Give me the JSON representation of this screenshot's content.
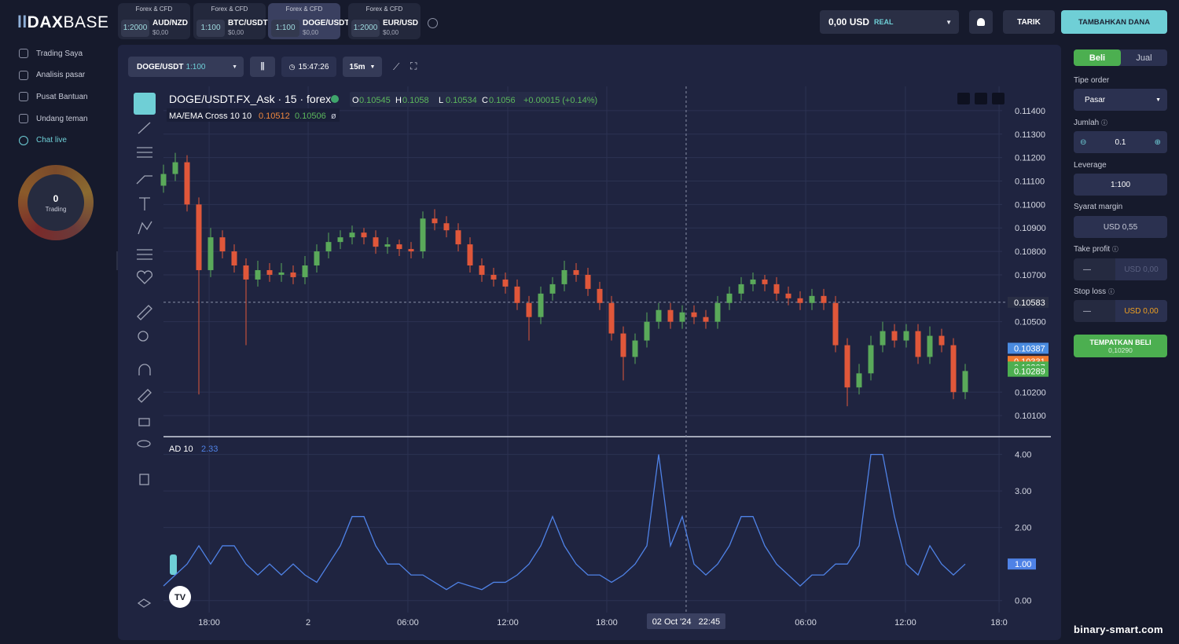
{
  "header": {
    "logo_bold": "DAX",
    "logo_light": "BASE",
    "tabs": [
      {
        "group": "Forex & CFD",
        "leverage": "1:2000",
        "symbol": "AUD/NZD",
        "amount": "$0,00"
      },
      {
        "group": "Forex & CFD",
        "leverage": "1:100",
        "symbol": "BTC/USDT",
        "amount": "$0,00"
      },
      {
        "group": "Forex & CFD",
        "leverage": "1:100",
        "symbol": "DOGE/USDT",
        "amount": "$0,00"
      },
      {
        "group": "Forex & CFD",
        "leverage": "1:2000",
        "symbol": "EUR/USD",
        "amount": "$0,00"
      }
    ],
    "balance": "0,00 USD",
    "account_mode": "REAL",
    "withdraw": "TARIK",
    "deposit": "TAMBAHKAN DANA"
  },
  "sidebar": {
    "items": [
      "Trading Saya",
      "Analisis pasar",
      "Pusat Bantuan",
      "Undang teman",
      "Chat live"
    ],
    "trading_count": "0",
    "trading_label": "Trading"
  },
  "toolbar": {
    "symbol": "DOGE/USDT",
    "leverage": "1:100",
    "time": "15:47:26",
    "interval": "15m"
  },
  "chart_data": {
    "type": "candlestick",
    "title": "DOGE/USDT.FX_Ask · 15 · forex",
    "ohlc": [
      {
        "key": "O",
        "value": 0.10545
      },
      {
        "key": "H",
        "value": 0.1058
      },
      {
        "key": "L",
        "value": 0.10534
      },
      {
        "key": "C",
        "value": 0.1056
      }
    ],
    "change": "+0.00015 (+0.14%)",
    "ma": {
      "name": "MA/EMA Cross 10 10",
      "values": [
        0.10512,
        0.10506
      ],
      "colors": [
        "#f0883e",
        "#5cb85c"
      ],
      "suffix": "ø"
    },
    "colors": {
      "up": "#5aa95a",
      "down": "#e0573a"
    },
    "open": [
      0.1108,
      0.1113,
      0.1118,
      0.11,
      0.1072,
      0.1086,
      0.108,
      0.1074,
      0.1068,
      0.1072,
      0.107,
      0.1071,
      0.1069,
      0.1074,
      0.108,
      0.1084,
      0.1086,
      0.1088,
      0.1086,
      0.1082,
      0.1083,
      0.1081,
      0.108,
      0.1094,
      0.1092,
      0.1089,
      0.1083,
      0.1074,
      0.107,
      0.1068,
      0.1065,
      0.1058,
      0.1052,
      0.1062,
      0.1066,
      0.1072,
      0.107,
      0.1064,
      0.1058,
      0.1045,
      0.1035,
      0.1042,
      0.105,
      0.1055,
      0.105,
      0.1054,
      0.1052,
      0.105,
      0.1058,
      0.1062,
      0.1066,
      0.1068,
      0.1066,
      0.1062,
      0.106,
      0.1058,
      0.1061,
      0.1058,
      0.104,
      0.1022,
      0.1028,
      0.104,
      0.1046,
      0.1042,
      0.1046,
      0.1035,
      0.1044,
      0.104,
      0.102
    ],
    "high": [
      0.1117,
      0.1122,
      0.1121,
      0.1103,
      0.109,
      0.1089,
      0.1083,
      0.1077,
      0.1076,
      0.1075,
      0.1075,
      0.1074,
      0.1078,
      0.1083,
      0.1088,
      0.1089,
      0.1091,
      0.109,
      0.1089,
      0.1086,
      0.1085,
      0.1084,
      0.1097,
      0.1098,
      0.1095,
      0.1092,
      0.1086,
      0.1077,
      0.1073,
      0.1071,
      0.1068,
      0.1061,
      0.1065,
      0.1069,
      0.1076,
      0.1075,
      0.1073,
      0.1067,
      0.1061,
      0.1048,
      0.1045,
      0.1054,
      0.1058,
      0.1058,
      0.1057,
      0.1057,
      0.1055,
      0.1061,
      0.1065,
      0.1069,
      0.1071,
      0.107,
      0.1069,
      0.1065,
      0.1063,
      0.1064,
      0.1064,
      0.1061,
      0.1043,
      0.1032,
      0.1044,
      0.105,
      0.1049,
      0.1049,
      0.1049,
      0.1048,
      0.1047,
      0.1043,
      0.1032
    ],
    "low": [
      0.1105,
      0.111,
      0.1097,
      0.1019,
      0.1069,
      0.1077,
      0.1071,
      0.104,
      0.1065,
      0.1067,
      0.1067,
      0.1066,
      0.1066,
      0.1071,
      0.1077,
      0.1081,
      0.1083,
      0.1083,
      0.1079,
      0.1079,
      0.1078,
      0.1077,
      0.1077,
      0.1089,
      0.1086,
      0.108,
      0.1071,
      0.1067,
      0.1065,
      0.1062,
      0.1055,
      0.1042,
      0.1049,
      0.1059,
      0.1063,
      0.1067,
      0.1061,
      0.1055,
      0.1042,
      0.1025,
      0.1032,
      0.1039,
      0.1047,
      0.1047,
      0.1047,
      0.1049,
      0.1047,
      0.1047,
      0.1055,
      0.1059,
      0.1063,
      0.1063,
      0.1059,
      0.1057,
      0.1055,
      0.1055,
      0.1055,
      0.1037,
      0.1014,
      0.1019,
      0.1025,
      0.1037,
      0.1039,
      0.1039,
      0.1032,
      0.1032,
      0.1037,
      0.1017,
      0.1017
    ],
    "close": [
      0.1113,
      0.1118,
      0.11,
      0.1072,
      0.1086,
      0.108,
      0.1074,
      0.1068,
      0.1072,
      0.107,
      0.1071,
      0.1069,
      0.1074,
      0.108,
      0.1084,
      0.1086,
      0.1088,
      0.1086,
      0.1082,
      0.1083,
      0.1081,
      0.108,
      0.1094,
      0.1092,
      0.1089,
      0.1083,
      0.1074,
      0.107,
      0.1068,
      0.1065,
      0.1058,
      0.1052,
      0.1062,
      0.1066,
      0.1072,
      0.107,
      0.1064,
      0.1058,
      0.1045,
      0.1035,
      0.1042,
      0.105,
      0.1055,
      0.105,
      0.1054,
      0.1052,
      0.105,
      0.1058,
      0.1062,
      0.1066,
      0.1068,
      0.1066,
      0.1062,
      0.106,
      0.1058,
      0.1061,
      0.1058,
      0.104,
      0.1022,
      0.1028,
      0.104,
      0.1046,
      0.1042,
      0.1046,
      0.1035,
      0.1044,
      0.104,
      0.102,
      0.1029
    ],
    "xlim": [
      0,
      72
    ],
    "xticks": [
      {
        "value": 3.87,
        "label": "18:00"
      },
      {
        "value": 12.27,
        "label": "2"
      },
      {
        "value": 20.73,
        "label": "06:00"
      },
      {
        "value": 29.2,
        "label": "12:00"
      },
      {
        "value": 37.6,
        "label": "18:00"
      },
      {
        "value": 54.47,
        "label": "06:00"
      },
      {
        "value": 62.93,
        "label": "12:00"
      },
      {
        "value": 70.87,
        "label": "18:0"
      }
    ],
    "ylim": [
      0.1,
      0.1148
    ],
    "yticks": [
      {
        "value": 0.114,
        "label": "0.11400"
      },
      {
        "value": 0.113,
        "label": "0.11300"
      },
      {
        "value": 0.112,
        "label": "0.11200"
      },
      {
        "value": 0.111,
        "label": "0.11100"
      },
      {
        "value": 0.11,
        "label": "0.11000"
      },
      {
        "value": 0.109,
        "label": "0.10900"
      },
      {
        "value": 0.108,
        "label": "0.10800"
      },
      {
        "value": 0.107,
        "label": "0.10700"
      },
      {
        "value": 0.105,
        "label": "0.10500"
      },
      {
        "value": 0.102,
        "label": "0.10200"
      },
      {
        "value": 0.101,
        "label": "0.10100"
      }
    ],
    "price_tags": [
      {
        "value": 0.10583,
        "color": "#2a2f45"
      },
      {
        "value": 0.10387,
        "color": "#4a8be0"
      },
      {
        "value": 0.10331,
        "color": "#f07a2e"
      },
      {
        "value": 0.10307,
        "color": "#4caf50"
      },
      {
        "value": 0.10289,
        "color": "#4caf50"
      }
    ],
    "crosshair": {
      "x": 44.33,
      "label": "02 Oct '24   22:45",
      "price": 0.10583
    },
    "grid": true,
    "indicator": {
      "type": "line",
      "name": "AD 10",
      "last": 2.33,
      "color": "#4f82e6",
      "values": [
        0.4,
        0.7,
        1.0,
        1.5,
        1.0,
        1.5,
        1.5,
        1.0,
        0.7,
        1.0,
        0.7,
        1.0,
        0.7,
        0.5,
        1.0,
        1.5,
        2.3,
        2.3,
        1.5,
        1.0,
        1.0,
        0.7,
        0.7,
        0.5,
        0.3,
        0.5,
        0.4,
        0.3,
        0.5,
        0.5,
        0.7,
        1.0,
        1.5,
        2.3,
        1.5,
        1.0,
        0.7,
        0.7,
        0.5,
        0.7,
        1.0,
        1.5,
        4.0,
        1.5,
        2.3,
        1.0,
        0.7,
        1.0,
        1.5,
        2.3,
        2.3,
        1.5,
        1.0,
        0.7,
        0.4,
        0.7,
        0.7,
        1.0,
        1.0,
        1.5,
        4.0,
        4.0,
        2.3,
        1.0,
        0.7,
        1.5,
        1.0,
        0.7,
        1.0
      ],
      "ylim": [
        -0.2,
        4.4
      ],
      "yticks": [
        {
          "value": 4,
          "label": "4.00"
        },
        {
          "value": 3,
          "label": "3.00"
        },
        {
          "value": 2,
          "label": "2.00"
        },
        {
          "value": 0,
          "label": "0.00"
        }
      ],
      "current": {
        "value": 1,
        "label": "1.00"
      }
    }
  },
  "order": {
    "buy": "Beli",
    "sell": "Jual",
    "type_label": "Tipe order",
    "type": "Pasar",
    "amount_label": "Jumlah",
    "amount": "0.1",
    "leverage_label": "Leverage",
    "leverage": "1:100",
    "margin_label": "Syarat margin",
    "margin": "USD 0,55",
    "tp_label": "Take profit",
    "tp": "USD 0,00",
    "sl_label": "Stop loss",
    "sl": "USD 0,00",
    "place": "TEMPATKAN BELI",
    "place_price": "0,10290"
  },
  "watermark": "binary-smart.com"
}
